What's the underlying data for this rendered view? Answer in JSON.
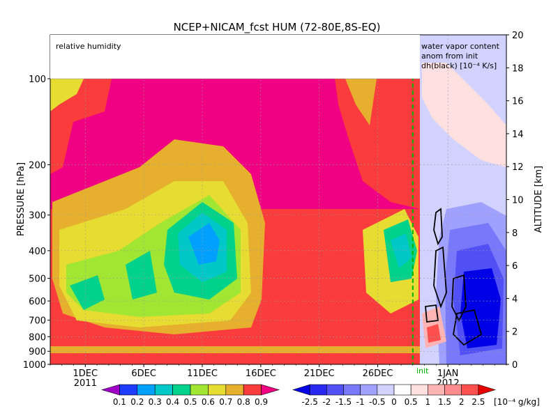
{
  "chart_data": {
    "type": "heatmap",
    "title": "NCEP+NICAM_fcst HUM (72-80E,8S-EQ)",
    "panel_left_label": "relative humidity",
    "panel_right_label_lines": [
      "water vapor content",
      "anom from init",
      "dh(black) [10⁻⁴ K/s]"
    ],
    "init_label": "init",
    "y_left": {
      "label": "PRESSURE [hPa]",
      "ticks": [
        "100",
        "200",
        "300",
        "400",
        "500",
        "600",
        "700",
        "800",
        "900",
        "1000"
      ],
      "values": [
        100,
        200,
        300,
        400,
        500,
        600,
        700,
        800,
        900,
        1000
      ],
      "scale": "log",
      "range": [
        1000,
        100
      ]
    },
    "y_right": {
      "label": "ALTITUDE [km]",
      "ticks": [
        "0",
        "2",
        "4",
        "6",
        "8",
        "10",
        "12",
        "14",
        "16",
        "18",
        "20"
      ],
      "range": [
        0,
        20
      ]
    },
    "x": {
      "ticks": [
        "1DEC",
        "6DEC",
        "11DEC",
        "16DEC",
        "21DEC",
        "26DEC",
        "1JAN"
      ],
      "tick_dates": [
        "2011-12-01",
        "2011-12-06",
        "2011-12-11",
        "2011-12-16",
        "2011-12-21",
        "2011-12-26",
        "2012-01-01"
      ],
      "year_labels": [
        "2011",
        "2012"
      ],
      "range": [
        "2011-11-28",
        "2012-01-06"
      ],
      "init_date": "2011-12-29"
    },
    "colorbar_rh": {
      "labels": [
        "0.1",
        "0.2",
        "0.3",
        "0.4",
        "0.5",
        "0.6",
        "0.7",
        "0.8",
        "0.9"
      ],
      "colors": [
        "#a000c8",
        "#1e3cff",
        "#00a0ff",
        "#00c8c8",
        "#00d28c",
        "#a0e632",
        "#e6dc32",
        "#e6af2d",
        "#fa3c3c",
        "#f00082"
      ]
    },
    "colorbar_anom": {
      "labels": [
        "-2.5",
        "-2",
        "-1.5",
        "-1",
        "-0.5",
        "0",
        "0.5",
        "1",
        "1.5",
        "2",
        "2.5"
      ],
      "unit": "[10⁻⁴ g/kg]",
      "colors": [
        "#0000e6",
        "#2828f0",
        "#5050f5",
        "#7878fa",
        "#a0a0ff",
        "#d2d2ff",
        "#ffffff",
        "#ffe0e0",
        "#ffb4b4",
        "#ff8c8c",
        "#ff5050",
        "#e60000"
      ]
    },
    "grid": true
  }
}
